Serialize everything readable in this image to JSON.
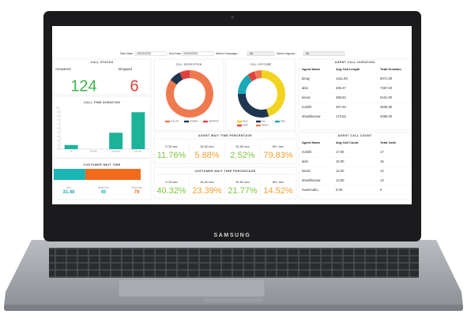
{
  "brand": "SAMSUNG",
  "filters": {
    "start_date_label": "Start Date",
    "start_date": "20/03/2020",
    "end_date_label": "End Date",
    "end_date": "20/03/2020",
    "campaign_label": "Select Campaign :",
    "campaign": "All",
    "ingroup_label": "Select Ingroup :",
    "ingroup": "All"
  },
  "call_status": {
    "title": "CALL STATUS",
    "answered_label": "Answered",
    "answered": 124,
    "dropped_label": "Dropped",
    "dropped": 6
  },
  "call_time_duration": {
    "type": "bar",
    "title": "CALL TIME DURATION",
    "color": "#1bb39a",
    "categories": [
      "0s",
      "0-15 sec",
      "15-30 sec",
      "60+ sec"
    ],
    "values": [
      1,
      0,
      4,
      9
    ],
    "ylim": [
      0,
      10
    ],
    "yticks": [
      0,
      1,
      2,
      3,
      4,
      5,
      6,
      7,
      8,
      9,
      10
    ]
  },
  "customer_wait_time": {
    "type": "stacked-bar",
    "title": "CUSTOMER WAIT TIME",
    "avg_label": "AVG",
    "avg": "31.40",
    "series": [
      {
        "name": "Below Avg",
        "color": "#1bb5b5",
        "value": 45
      },
      {
        "name": "Above Avg",
        "color": "#f26b1d",
        "value": 79
      }
    ]
  },
  "disposition": {
    "type": "donut",
    "title": "CALL DISPOSITION",
    "series": [
      {
        "name": "FOLLOW",
        "color": "#f07a4f",
        "value": 85
      },
      {
        "name": "ANSWER",
        "color": "#1f3650",
        "value": 8
      },
      {
        "name": "DEPARTED",
        "color": "#e23f3f",
        "value": 7
      }
    ]
  },
  "outcome": {
    "type": "donut",
    "title": "CALL OUTCOME",
    "series": [
      {
        "name": "PASS",
        "color": "#f2d320",
        "value": 45
      },
      {
        "name": "FAIL",
        "color": "#1f3650",
        "value": 30
      },
      {
        "name": "NEW",
        "color": "#1aa9b5",
        "value": 15
      },
      {
        "name": "DROP",
        "color": "#e23f3f",
        "value": 5
      },
      {
        "name": "REJECT",
        "color": "#f07a4f",
        "value": 5
      }
    ]
  },
  "agent_wait": {
    "title": "AGENT WAIT TIME PERCENTAGE",
    "items": [
      {
        "label": "0-15 sec",
        "value": "11.76%",
        "color": "#7dc63f"
      },
      {
        "label": "16-30 sec",
        "value": "5.88%",
        "color": "#f0a030"
      },
      {
        "label": "31-60 sec",
        "value": "2.52%",
        "color": "#7dc63f"
      },
      {
        "label": "60+ sec",
        "value": "79.83%",
        "color": "#f0a030"
      }
    ]
  },
  "customer_wait": {
    "title": "CUSTOMER WAIT TIME PERCENTAGE",
    "items": [
      {
        "label": "0-15 sec",
        "value": "40.32%",
        "color": "#7dc63f"
      },
      {
        "label": "16-30 sec",
        "value": "23.39%",
        "color": "#f0a030"
      },
      {
        "label": "31-60 sec",
        "value": "21.77%",
        "color": "#7dc63f"
      },
      {
        "label": "60+ sec",
        "value": "14.52%",
        "color": "#f0a030"
      }
    ]
  },
  "agent_call_duration": {
    "title": "AGENT CALL DURATION",
    "header": [
      "Agent Name",
      "Avg Call Length",
      "Total Duration"
    ],
    "rows": [
      [
        "binay",
        "1411.83",
        "8471.00"
      ],
      [
        "abin",
        "490.47",
        "7357.00"
      ],
      [
        "kiranc",
        "366.84",
        "5161.00"
      ],
      [
        "mohith",
        "207.94",
        "3535.00"
      ],
      [
        "shashikumar",
        "173.83",
        "2086.00"
      ]
    ]
  },
  "agent_call_count": {
    "title": "AGENT CALL COUNT",
    "header": [
      "Agent Name",
      "Avg Call Count",
      "Total Calls"
    ],
    "rows": [
      [
        "mohith",
        "17.00",
        "17"
      ],
      [
        "abin",
        "15.00",
        "15"
      ],
      [
        "kiranc",
        "14.00",
        "14"
      ],
      [
        "shashikumar",
        "13.00",
        "13"
      ],
      [
        "manimuthu",
        "0.00",
        "0"
      ]
    ]
  }
}
